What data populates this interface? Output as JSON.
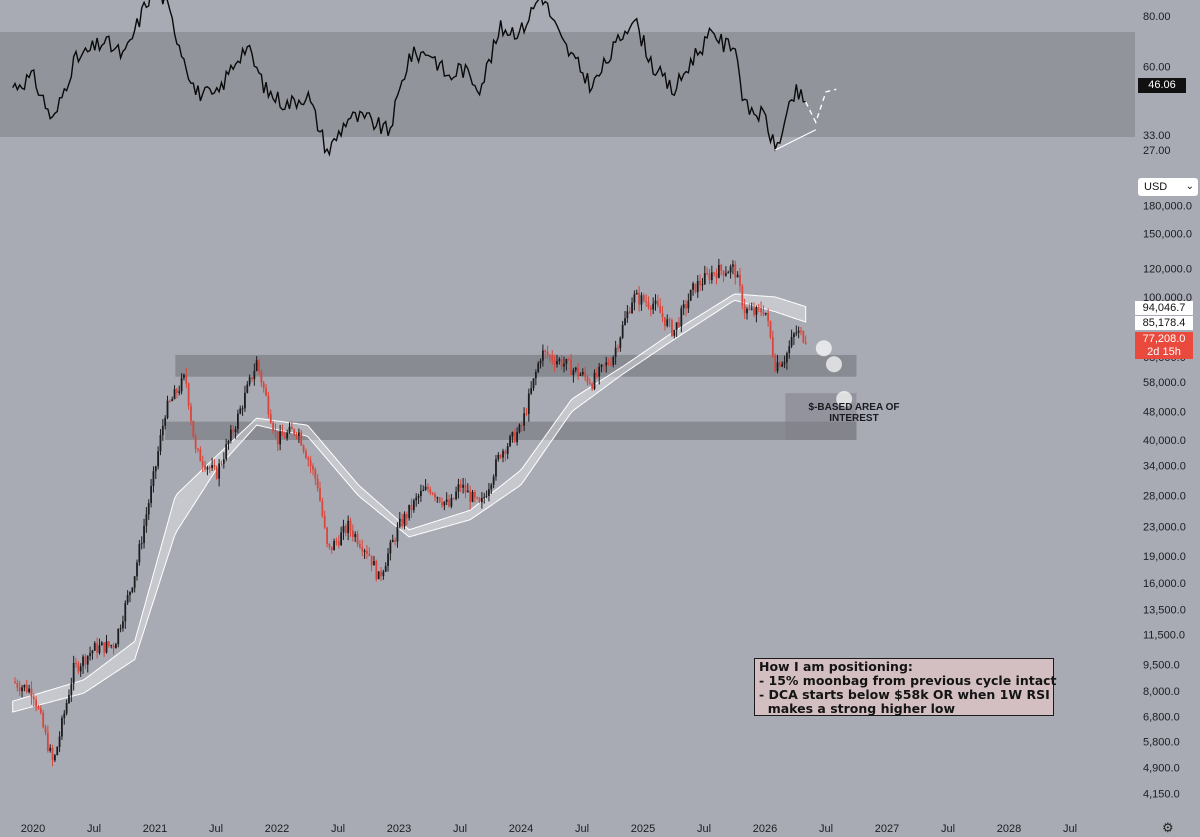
{
  "chart_data": {
    "type": "candlestick",
    "price_scale": "log",
    "currency": "USD",
    "x_labels": [
      "2020",
      "Jul",
      "2021",
      "Jul",
      "2022",
      "Jul",
      "2023",
      "Jul",
      "2024",
      "Jul",
      "2025",
      "Jul",
      "2026",
      "Jul",
      "2027",
      "Jul",
      "2028",
      "Jul"
    ],
    "price_ticks": [
      "180,000.0",
      "150,000.0",
      "120,000.0",
      "100,000.0",
      "68,000.0",
      "58,000.0",
      "48,000.0",
      "40,000.0",
      "34,000.0",
      "28,000.0",
      "23,000.0",
      "19,000.0",
      "16,000.0",
      "13,500.0",
      "11,500.0",
      "9,500.0",
      "8,000.0",
      "6,800.0",
      "5,800.0",
      "4,900.0",
      "4,150.0"
    ],
    "price_tick_values": [
      180000,
      150000,
      120000,
      100000,
      68000,
      58000,
      48000,
      40000,
      34000,
      28000,
      23000,
      19000,
      16000,
      13500,
      11500,
      9500,
      8000,
      6800,
      5800,
      4900,
      4150
    ],
    "price_anchors": [
      {
        "t": "2019-11",
        "p": 8500
      },
      {
        "t": "2020-01",
        "p": 8000
      },
      {
        "t": "2020-03",
        "p": 5000
      },
      {
        "t": "2020-05",
        "p": 9200
      },
      {
        "t": "2020-07",
        "p": 10500
      },
      {
        "t": "2020-09",
        "p": 10800
      },
      {
        "t": "2020-11",
        "p": 17000
      },
      {
        "t": "2021-01",
        "p": 33000
      },
      {
        "t": "2021-02",
        "p": 48000
      },
      {
        "t": "2021-04",
        "p": 60000
      },
      {
        "t": "2021-05",
        "p": 37000
      },
      {
        "t": "2021-07",
        "p": 32000
      },
      {
        "t": "2021-09",
        "p": 45000
      },
      {
        "t": "2021-11",
        "p": 66000
      },
      {
        "t": "2022-01",
        "p": 40000
      },
      {
        "t": "2022-03",
        "p": 43000
      },
      {
        "t": "2022-05",
        "p": 30000
      },
      {
        "t": "2022-06",
        "p": 19500
      },
      {
        "t": "2022-08",
        "p": 23000
      },
      {
        "t": "2022-10",
        "p": 19500
      },
      {
        "t": "2022-11",
        "p": 16500
      },
      {
        "t": "2023-01",
        "p": 23000
      },
      {
        "t": "2023-03",
        "p": 28000
      },
      {
        "t": "2023-04",
        "p": 29500
      },
      {
        "t": "2023-06",
        "p": 26000
      },
      {
        "t": "2023-07",
        "p": 30000
      },
      {
        "t": "2023-09",
        "p": 26000
      },
      {
        "t": "2023-11",
        "p": 37000
      },
      {
        "t": "2024-01",
        "p": 43000
      },
      {
        "t": "2024-03",
        "p": 70000
      },
      {
        "t": "2024-05",
        "p": 66000
      },
      {
        "t": "2024-08",
        "p": 58000
      },
      {
        "t": "2024-10",
        "p": 68000
      },
      {
        "t": "2024-12",
        "p": 100000
      },
      {
        "t": "2025-02",
        "p": 96000
      },
      {
        "t": "2025-04",
        "p": 80000
      },
      {
        "t": "2025-06",
        "p": 106000
      },
      {
        "t": "2025-08",
        "p": 118000
      },
      {
        "t": "2025-10",
        "p": 120000
      },
      {
        "t": "2025-11",
        "p": 92000
      },
      {
        "t": "2025-12",
        "p": 90000
      },
      {
        "t": "2026-01",
        "p": 93000
      },
      {
        "t": "2026-02",
        "p": 65000
      },
      {
        "t": "2026-03",
        "p": 68000
      },
      {
        "t": "2026-04",
        "p": 80000
      },
      {
        "t": "2026-05",
        "p": 77208
      }
    ],
    "ma_upper_anchors": [
      {
        "t": "2019-11",
        "p": 7500
      },
      {
        "t": "2020-06",
        "p": 8600
      },
      {
        "t": "2020-11",
        "p": 11000
      },
      {
        "t": "2021-03",
        "p": 28000
      },
      {
        "t": "2021-07",
        "p": 36000
      },
      {
        "t": "2021-11",
        "p": 46000
      },
      {
        "t": "2022-04",
        "p": 44000
      },
      {
        "t": "2022-09",
        "p": 30000
      },
      {
        "t": "2023-02",
        "p": 22500
      },
      {
        "t": "2023-08",
        "p": 25500
      },
      {
        "t": "2024-01",
        "p": 33000
      },
      {
        "t": "2024-06",
        "p": 52000
      },
      {
        "t": "2024-11",
        "p": 64000
      },
      {
        "t": "2025-04",
        "p": 80000
      },
      {
        "t": "2025-10",
        "p": 102000
      },
      {
        "t": "2026-02",
        "p": 100000
      },
      {
        "t": "2026-05",
        "p": 94046.7
      }
    ],
    "ma_lower_anchors": [
      {
        "t": "2019-11",
        "p": 7000
      },
      {
        "t": "2020-06",
        "p": 7900
      },
      {
        "t": "2020-11",
        "p": 9800
      },
      {
        "t": "2021-03",
        "p": 22000
      },
      {
        "t": "2021-07",
        "p": 33000
      },
      {
        "t": "2021-11",
        "p": 44000
      },
      {
        "t": "2022-04",
        "p": 41000
      },
      {
        "t": "2022-09",
        "p": 28000
      },
      {
        "t": "2023-02",
        "p": 21500
      },
      {
        "t": "2023-08",
        "p": 24000
      },
      {
        "t": "2024-01",
        "p": 30000
      },
      {
        "t": "2024-06",
        "p": 48000
      },
      {
        "t": "2024-11",
        "p": 61000
      },
      {
        "t": "2025-04",
        "p": 76000
      },
      {
        "t": "2025-10",
        "p": 98000
      },
      {
        "t": "2026-02",
        "p": 91000
      },
      {
        "t": "2026-05",
        "p": 85178.4
      }
    ],
    "zones": [
      {
        "from": "2021-03",
        "to": "2026-10",
        "low": 60000,
        "high": 69000
      },
      {
        "from": "2021-02",
        "to": "2026-10",
        "low": 40000,
        "high": 45000
      },
      {
        "from": "2026-03",
        "to": "2026-10",
        "low": 40000,
        "high": 54000
      }
    ],
    "projection_points": [
      {
        "t": "2026-06",
        "p": 72000
      },
      {
        "t": "2026-07",
        "p": 65000
      },
      {
        "t": "2026-08",
        "p": 52000
      }
    ],
    "price_labels": {
      "ma_upper": "94,046.7",
      "ma_lower": "85,178.4",
      "last_price": "77,208.0",
      "countdown": "2d 15h"
    },
    "rsi": {
      "ticks": [
        "80.00",
        "60.00",
        "33.00",
        "27.00"
      ],
      "tick_values": [
        80,
        60,
        33,
        27
      ],
      "band": [
        30,
        70
      ],
      "current_label": "46.06",
      "anchors": [
        {
          "t": "2019-11",
          "v": 52
        },
        {
          "t": "2020-01",
          "v": 56
        },
        {
          "t": "2020-03",
          "v": 38
        },
        {
          "t": "2020-05",
          "v": 62
        },
        {
          "t": "2020-08",
          "v": 70
        },
        {
          "t": "2020-10",
          "v": 64
        },
        {
          "t": "2020-12",
          "v": 84
        },
        {
          "t": "2021-01",
          "v": 92
        },
        {
          "t": "2021-02",
          "v": 86
        },
        {
          "t": "2021-05",
          "v": 50
        },
        {
          "t": "2021-07",
          "v": 48
        },
        {
          "t": "2021-09",
          "v": 63
        },
        {
          "t": "2021-10",
          "v": 68
        },
        {
          "t": "2021-12",
          "v": 50
        },
        {
          "t": "2022-02",
          "v": 45
        },
        {
          "t": "2022-04",
          "v": 49
        },
        {
          "t": "2022-06",
          "v": 26
        },
        {
          "t": "2022-08",
          "v": 40
        },
        {
          "t": "2022-10",
          "v": 39
        },
        {
          "t": "2022-12",
          "v": 34
        },
        {
          "t": "2023-02",
          "v": 64
        },
        {
          "t": "2023-04",
          "v": 66
        },
        {
          "t": "2023-06",
          "v": 55
        },
        {
          "t": "2023-07",
          "v": 60
        },
        {
          "t": "2023-09",
          "v": 52
        },
        {
          "t": "2023-11",
          "v": 75
        },
        {
          "t": "2024-01",
          "v": 74
        },
        {
          "t": "2024-03",
          "v": 89
        },
        {
          "t": "2024-05",
          "v": 70
        },
        {
          "t": "2024-08",
          "v": 52
        },
        {
          "t": "2024-10",
          "v": 66
        },
        {
          "t": "2024-12",
          "v": 80
        },
        {
          "t": "2025-02",
          "v": 60
        },
        {
          "t": "2025-04",
          "v": 50
        },
        {
          "t": "2025-06",
          "v": 64
        },
        {
          "t": "2025-08",
          "v": 74
        },
        {
          "t": "2025-09",
          "v": 68
        },
        {
          "t": "2025-10",
          "v": 70
        },
        {
          "t": "2025-11",
          "v": 44
        },
        {
          "t": "2026-01",
          "v": 40
        },
        {
          "t": "2026-02",
          "v": 27
        },
        {
          "t": "2026-03",
          "v": 38
        },
        {
          "t": "2026-04",
          "v": 50
        },
        {
          "t": "2026-05",
          "v": 46.06
        }
      ],
      "trendline": [
        {
          "t": "2026-02",
          "v": 27
        },
        {
          "t": "2026-06",
          "v": 35
        }
      ],
      "projection": [
        {
          "t": "2026-05",
          "v": 46
        },
        {
          "t": "2026-06",
          "v": 38
        },
        {
          "t": "2026-07",
          "v": 50
        },
        {
          "t": "2026-08",
          "v": 51
        }
      ]
    },
    "annotations": {
      "area_label": "$-BASED AREA OF INTEREST",
      "note_lines": [
        "How I am positioning:",
        "- 15% moonbag from previous cycle intact",
        "- DCA starts below $58k OR when 1W RSI",
        "  makes a strong higher low"
      ]
    },
    "colors": {
      "background": "#a9abb4",
      "zone": "#7f8088",
      "candle_up": "#1c1c1f",
      "candle_down": "#d9453a",
      "ma_fill": "#ffffff",
      "rsi_line": "#0a0a0a",
      "rsi_band": "#8f9199",
      "note_bg": "#d3bfc1",
      "last_price_bg": "#ea4a3d"
    }
  },
  "ui": {
    "currency_select": "USD",
    "settings_icon": "gear-icon"
  }
}
